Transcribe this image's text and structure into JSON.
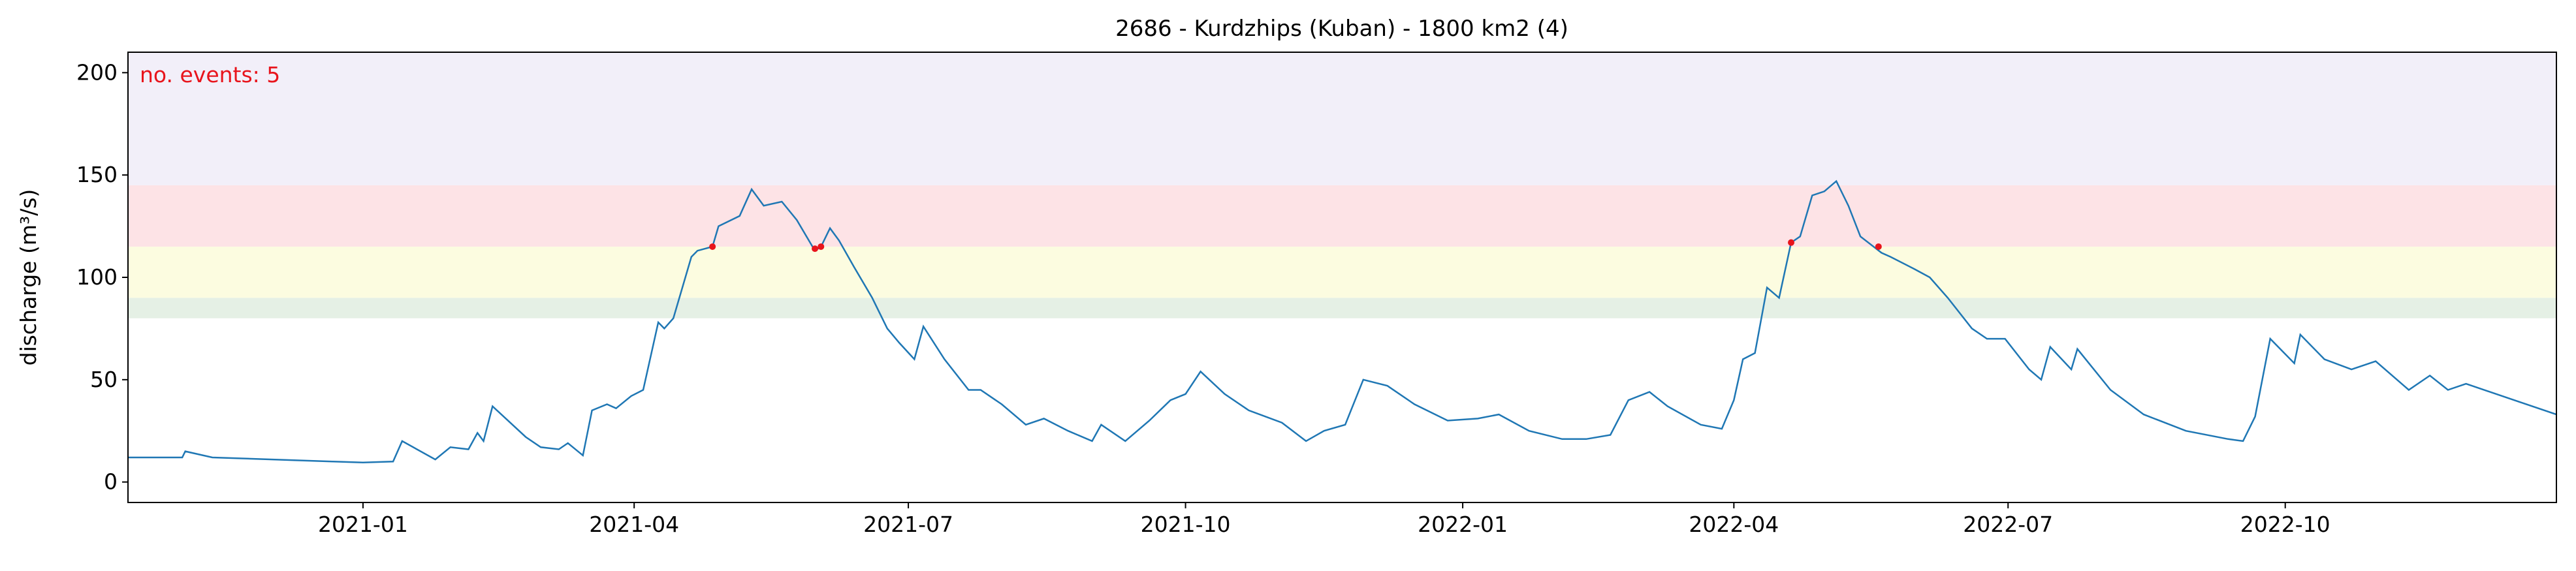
{
  "chart_data": {
    "type": "line",
    "title": "2686 - Kurdzhips (Kuban) - 1800 km2 (4)",
    "ylabel": "discharge (m³/s)",
    "annotation": "no. events: 5",
    "annotation_color": "#e8141c",
    "xlim": [
      -78,
      728
    ],
    "ylim": [
      -10,
      210
    ],
    "xticks": [
      {
        "value": 0,
        "label": "2021-01"
      },
      {
        "value": 90,
        "label": "2021-04"
      },
      {
        "value": 181,
        "label": "2021-07"
      },
      {
        "value": 273,
        "label": "2021-10"
      },
      {
        "value": 365,
        "label": "2022-01"
      },
      {
        "value": 455,
        "label": "2022-04"
      },
      {
        "value": 546,
        "label": "2022-07"
      },
      {
        "value": 638,
        "label": "2022-10"
      }
    ],
    "yticks": [
      0,
      50,
      100,
      150,
      200
    ],
    "bands": [
      {
        "from": 80,
        "to": 90,
        "color": "#e5f0e5"
      },
      {
        "from": 90,
        "to": 115,
        "color": "#fcfce0"
      },
      {
        "from": 115,
        "to": 145,
        "color": "#fde3e6"
      },
      {
        "from": 145,
        "to": 210,
        "color": "#f2eff9"
      }
    ],
    "series": [
      {
        "name": "discharge",
        "color": "#1f77b4",
        "x": [
          -78,
          -60,
          -59,
          -50,
          -30,
          -10,
          0,
          10,
          13,
          24,
          29,
          35,
          38,
          40,
          43,
          54,
          59,
          65,
          68,
          73,
          76,
          81,
          84,
          89,
          93,
          98,
          100,
          103,
          109,
          111,
          116,
          118,
          125,
          129,
          133,
          139,
          144,
          150,
          152,
          155,
          158,
          163,
          169,
          174,
          178,
          183,
          186,
          193,
          201,
          205,
          212,
          220,
          226,
          234,
          242,
          245,
          253,
          261,
          268,
          273,
          278,
          286,
          294,
          305,
          313,
          319,
          326,
          332,
          340,
          349,
          360,
          370,
          377,
          387,
          398,
          406,
          414,
          420,
          427,
          433,
          444,
          451,
          455,
          458,
          462,
          466,
          470,
          474,
          477,
          481,
          485,
          489,
          493,
          497,
          504,
          507,
          515,
          520,
          526,
          534,
          539,
          545,
          553,
          557,
          560,
          567,
          569,
          580,
          591,
          605,
          619,
          624,
          628,
          633,
          641,
          643,
          651,
          660,
          668,
          679,
          686,
          692,
          698,
          714,
          728
        ],
        "values": [
          12,
          12,
          15,
          12,
          11,
          10,
          9.5,
          10,
          20,
          11,
          17,
          16,
          24,
          20,
          37,
          22,
          17,
          16,
          19,
          13,
          35,
          38,
          36,
          42,
          45,
          78,
          75,
          80,
          110,
          113,
          115,
          125,
          130,
          143,
          135,
          137,
          128,
          113,
          115,
          124,
          118,
          105,
          90,
          75,
          68,
          60,
          76,
          60,
          45,
          45,
          38,
          28,
          31,
          25,
          20,
          28,
          20,
          30,
          40,
          43,
          54,
          43,
          35,
          29,
          20,
          25,
          28,
          50,
          47,
          38,
          30,
          31,
          33,
          25,
          21,
          21,
          23,
          40,
          44,
          37,
          28,
          26,
          40,
          60,
          63,
          95,
          90,
          117,
          120,
          140,
          142,
          147,
          135,
          120,
          112,
          110,
          104,
          100,
          90,
          75,
          70,
          70,
          55,
          50,
          66,
          55,
          65,
          45,
          33,
          25,
          21,
          20,
          32,
          70,
          58,
          72,
          60,
          55,
          59,
          45,
          52,
          45,
          48,
          40,
          33
        ]
      },
      {
        "name": "events",
        "color": "#e8141c",
        "x": [
          116,
          150,
          152,
          474,
          503
        ],
        "values": [
          115,
          114,
          115,
          117,
          115
        ]
      }
    ]
  }
}
